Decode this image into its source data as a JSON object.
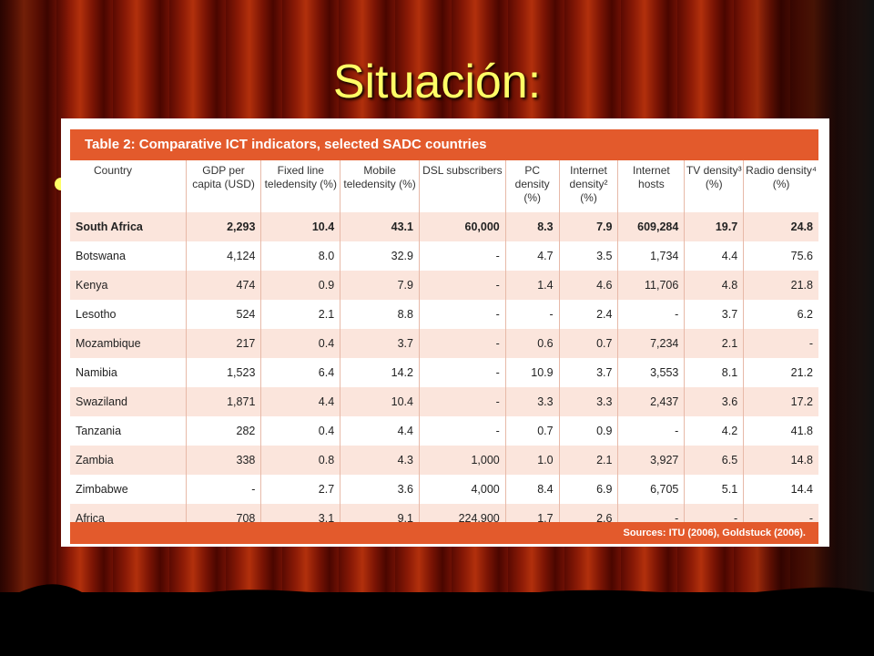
{
  "slide": {
    "title": "Situación:"
  },
  "table": {
    "caption": "Table 2: Comparative ICT indicators, selected SADC countries",
    "columns": [
      "Country",
      "GDP per capita (USD)",
      "Fixed line teledensity (%)",
      "Mobile teledensity (%)",
      "DSL subscribers",
      "PC density (%)",
      "Internet density² (%)",
      "Internet hosts",
      "TV density³ (%)",
      "Radio density⁴ (%)"
    ],
    "rows": [
      [
        "South Africa",
        "2,293",
        "10.4",
        "43.1",
        "60,000",
        "8.3",
        "7.9",
        "609,284",
        "19.7",
        "24.8"
      ],
      [
        "Botswana",
        "4,124",
        "8.0",
        "32.9",
        "-",
        "4.7",
        "3.5",
        "1,734",
        "4.4",
        "75.6"
      ],
      [
        "Kenya",
        "474",
        "0.9",
        "7.9",
        "-",
        "1.4",
        "4.6",
        "11,706",
        "4.8",
        "21.8"
      ],
      [
        "Lesotho",
        "524",
        "2.1",
        "8.8",
        "-",
        "-",
        "2.4",
        "-",
        "3.7",
        "6.2"
      ],
      [
        "Mozambique",
        "217",
        "0.4",
        "3.7",
        "-",
        "0.6",
        "0.7",
        "7,234",
        "2.1",
        "-"
      ],
      [
        "Namibia",
        "1,523",
        "6.4",
        "14.2",
        "-",
        "10.9",
        "3.7",
        "3,553",
        "8.1",
        "21.2"
      ],
      [
        "Swaziland",
        "1,871",
        "4.4",
        "10.4",
        "-",
        "3.3",
        "3.3",
        "2,437",
        "3.6",
        "17.2"
      ],
      [
        "Tanzania",
        "282",
        "0.4",
        "4.4",
        "-",
        "0.7",
        "0.9",
        "-",
        "4.2",
        "41.8"
      ],
      [
        "Zambia",
        "338",
        "0.8",
        "4.3",
        "1,000",
        "1.0",
        "2.1",
        "3,927",
        "6.5",
        "14.8"
      ],
      [
        "Zimbabwe",
        "-",
        "2.7",
        "3.6",
        "4,000",
        "8.4",
        "6.9",
        "6,705",
        "5.1",
        "14.4"
      ],
      [
        "Africa",
        "708",
        "3.1",
        "9.1",
        "224,900",
        "1.7",
        "2.6",
        "-",
        "-",
        "-"
      ]
    ],
    "source": "Sources: ITU (2006), Goldstuck (2006)."
  },
  "colors": {
    "title": "#ffff66",
    "header_bar": "#e35a2c",
    "row_shade": "#fbe5dc",
    "curtain": "#8a1a06"
  }
}
